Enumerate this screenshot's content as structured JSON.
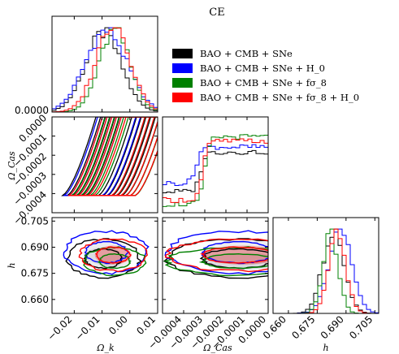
{
  "chart_data": {
    "type": "corner",
    "title": "CE",
    "parameters": [
      {
        "key": "omega_k",
        "label": "Ω_k",
        "range": [
          -0.028,
          0.01
        ],
        "ticks": [
          -0.02,
          -0.01,
          0.0,
          0.01
        ],
        "tick_labels": [
          "−0.02",
          "−0.01",
          "0.00",
          "0.01"
        ]
      },
      {
        "key": "omega_cas",
        "label": "Ω_Cas",
        "range": [
          -0.0005,
          0.0
        ],
        "ticks": [
          -0.0004,
          -0.0003,
          -0.0002,
          -0.0001,
          0.0
        ],
        "tick_labels": [
          "−0.0004",
          "−0.0003",
          "−0.0002",
          "−0.0001",
          "0.0000"
        ]
      },
      {
        "key": "h",
        "label": "h",
        "range": [
          0.652,
          0.707
        ],
        "ticks": [
          0.66,
          0.675,
          0.69,
          0.705
        ],
        "tick_labels": [
          "0.660",
          "0.675",
          "0.690",
          "0.705"
        ]
      }
    ],
    "left_column_labels": {
      "omega_cas": "Ω_Cas",
      "h": "h"
    },
    "left_column_ticks": {
      "omega_cas": [
        "0.0000",
        "−0.0001",
        "−0.0002",
        "−0.0003",
        "−0.0004"
      ],
      "h": [
        "0.705",
        "0.690",
        "0.675",
        "0.660"
      ]
    },
    "series": [
      {
        "name": "BAO + CMB + SNe",
        "color": "#000000",
        "omega_k": {
          "mean": -0.0095,
          "sd": 0.0065
        },
        "omega_cas": {
          "step_at": -0.00032,
          "low": 0.25,
          "high": 0.72
        },
        "h": {
          "mean": 0.6835,
          "sd": 0.0055
        }
      },
      {
        "name": "BAO + CMB + SNe + H_0",
        "color": "#0000ff",
        "omega_k": {
          "mean": -0.0085,
          "sd": 0.0075
        },
        "omega_cas": {
          "step_at": -0.00034,
          "low": 0.35,
          "high": 0.78
        },
        "h": {
          "mean": 0.687,
          "sd": 0.006
        }
      },
      {
        "name": "BAO + CMB + SNe + fσ_8",
        "color": "#008000",
        "omega_k": {
          "mean": -0.0055,
          "sd": 0.0055
        },
        "omega_cas": {
          "step_at": -0.0003,
          "low": 0.1,
          "high": 0.9
        },
        "h": {
          "mean": 0.682,
          "sd": 0.004
        }
      },
      {
        "name": "BAO + CMB + SNe + fσ_8 + H_0",
        "color": "#ff0000",
        "omega_k": {
          "mean": -0.006,
          "sd": 0.006
        },
        "omega_cas": {
          "step_at": -0.00031,
          "low": 0.15,
          "high": 0.85
        },
        "h": {
          "mean": 0.6855,
          "sd": 0.0045
        }
      }
    ],
    "grid": false,
    "legend_position": "top-right"
  }
}
